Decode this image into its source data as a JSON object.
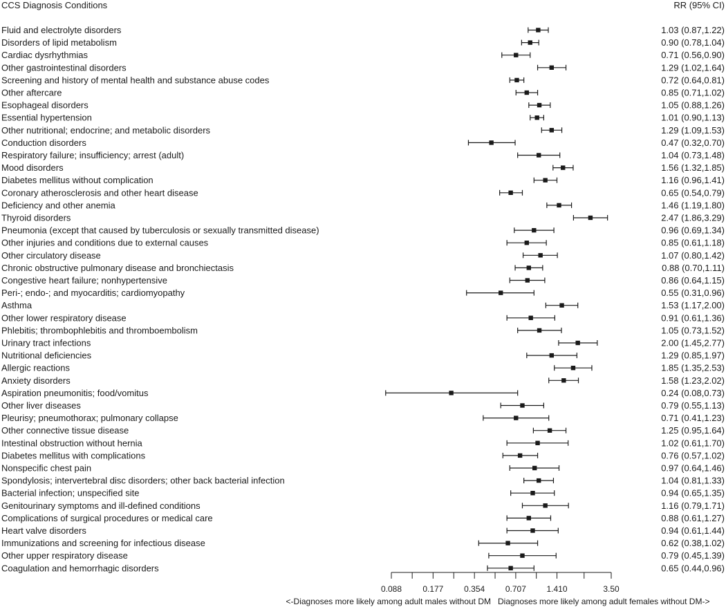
{
  "chart_data": {
    "type": "forest",
    "header_left": "CCS Diagnosis Conditions",
    "header_right": "RR (95% CI)",
    "x_scale": "log",
    "xlim": [
      0.088,
      3.5
    ],
    "x_ticks": [
      0.088,
      0.177,
      0.354,
      0.707,
      1.41,
      3.5
    ],
    "x_tick_labels": [
      "0.088",
      "0.177",
      "0.354",
      "0.707",
      "1.410",
      "3.50"
    ],
    "left_caption": "<-Diagnoses more likely among adult males without DM",
    "right_caption": "Diagnoses more likely among adult females without DM->",
    "colors": {
      "text": "#1a1a1a",
      "marks": "#1a1a1a"
    },
    "rows": [
      {
        "label": "Fluid and electrolyte disorders",
        "rr": 1.03,
        "lo": 0.87,
        "hi": 1.22,
        "text": "1.03 (0.87,1.22)"
      },
      {
        "label": "Disorders of lipid metabolism",
        "rr": 0.9,
        "lo": 0.78,
        "hi": 1.04,
        "text": "0.90 (0.78,1.04)"
      },
      {
        "label": "Cardiac dysrhythmias",
        "rr": 0.71,
        "lo": 0.56,
        "hi": 0.9,
        "text": "0.71 (0.56,0.90)"
      },
      {
        "label": "Other gastrointestinal disorders",
        "rr": 1.29,
        "lo": 1.02,
        "hi": 1.64,
        "text": "1.29 (1.02,1.64)"
      },
      {
        "label": "Screening and history of mental health and substance abuse codes",
        "rr": 0.72,
        "lo": 0.64,
        "hi": 0.81,
        "text": "0.72 (0.64,0.81)"
      },
      {
        "label": "Other aftercare",
        "rr": 0.85,
        "lo": 0.71,
        "hi": 1.02,
        "text": "0.85 (0.71,1.02)"
      },
      {
        "label": "Esophageal disorders",
        "rr": 1.05,
        "lo": 0.88,
        "hi": 1.26,
        "text": "1.05 (0.88,1.26)"
      },
      {
        "label": "Essential hypertension",
        "rr": 1.01,
        "lo": 0.9,
        "hi": 1.13,
        "text": "1.01 (0.90,1.13)"
      },
      {
        "label": "Other nutritional; endocrine; and metabolic disorders",
        "rr": 1.29,
        "lo": 1.09,
        "hi": 1.53,
        "text": "1.29 (1.09,1.53)"
      },
      {
        "label": "Conduction disorders",
        "rr": 0.47,
        "lo": 0.32,
        "hi": 0.7,
        "text": "0.47 (0.32,0.70)"
      },
      {
        "label": "Respiratory failure; insufficiency; arrest (adult)",
        "rr": 1.04,
        "lo": 0.73,
        "hi": 1.48,
        "text": "1.04 (0.73,1.48)"
      },
      {
        "label": "Mood disorders",
        "rr": 1.56,
        "lo": 1.32,
        "hi": 1.85,
        "text": "1.56 (1.32,1.85)"
      },
      {
        "label": "Diabetes mellitus without complication",
        "rr": 1.16,
        "lo": 0.96,
        "hi": 1.41,
        "text": "1.16 (0.96,1.41)"
      },
      {
        "label": "Coronary atherosclerosis and other heart disease",
        "rr": 0.65,
        "lo": 0.54,
        "hi": 0.79,
        "text": "0.65 (0.54,0.79)"
      },
      {
        "label": "Deficiency and other anemia",
        "rr": 1.46,
        "lo": 1.19,
        "hi": 1.8,
        "text": "1.46 (1.19,1.80)"
      },
      {
        "label": "Thyroid disorders",
        "rr": 2.47,
        "lo": 1.86,
        "hi": 3.29,
        "text": "2.47 (1.86,3.29)"
      },
      {
        "label": "Pneumonia (except that caused by tuberculosis or sexually transmitted disease)",
        "rr": 0.96,
        "lo": 0.69,
        "hi": 1.34,
        "text": "0.96 (0.69,1.34)"
      },
      {
        "label": "Other injuries and conditions due to external causes",
        "rr": 0.85,
        "lo": 0.61,
        "hi": 1.18,
        "text": "0.85 (0.61,1.18)"
      },
      {
        "label": "Other circulatory disease",
        "rr": 1.07,
        "lo": 0.8,
        "hi": 1.42,
        "text": "1.07 (0.80,1.42)"
      },
      {
        "label": "Chronic obstructive pulmonary disease and bronchiectasis",
        "rr": 0.88,
        "lo": 0.7,
        "hi": 1.11,
        "text": "0.88 (0.70,1.11)"
      },
      {
        "label": "Congestive heart failure; nonhypertensive",
        "rr": 0.86,
        "lo": 0.64,
        "hi": 1.15,
        "text": "0.86 (0.64,1.15)"
      },
      {
        "label": "Peri-; endo-; and myocarditis; cardiomyopathy",
        "rr": 0.55,
        "lo": 0.31,
        "hi": 0.96,
        "text": "0.55 (0.31,0.96)"
      },
      {
        "label": "Asthma",
        "rr": 1.53,
        "lo": 1.17,
        "hi": 2.0,
        "text": "1.53 (1.17,2.00)"
      },
      {
        "label": "Other lower respiratory disease",
        "rr": 0.91,
        "lo": 0.61,
        "hi": 1.36,
        "text": "0.91 (0.61,1.36)"
      },
      {
        "label": "Phlebitis; thrombophlebitis and thromboembolism",
        "rr": 1.05,
        "lo": 0.73,
        "hi": 1.52,
        "text": "1.05 (0.73,1.52)"
      },
      {
        "label": "Urinary tract infections",
        "rr": 2.0,
        "lo": 1.45,
        "hi": 2.77,
        "text": "2.00 (1.45,2.77)"
      },
      {
        "label": "Nutritional deficiencies",
        "rr": 1.29,
        "lo": 0.85,
        "hi": 1.97,
        "text": "1.29 (0.85,1.97)"
      },
      {
        "label": "Allergic reactions",
        "rr": 1.85,
        "lo": 1.35,
        "hi": 2.53,
        "text": "1.85 (1.35,2.53)"
      },
      {
        "label": "Anxiety disorders",
        "rr": 1.58,
        "lo": 1.23,
        "hi": 2.02,
        "text": "1.58 (1.23,2.02)"
      },
      {
        "label": "Aspiration pneumonitis; food/vomitus",
        "rr": 0.24,
        "lo": 0.08,
        "hi": 0.73,
        "text": "0.24 (0.08,0.73)"
      },
      {
        "label": "Other liver diseases",
        "rr": 0.79,
        "lo": 0.55,
        "hi": 1.13,
        "text": "0.79 (0.55,1.13)"
      },
      {
        "label": "Pleurisy; pneumothorax; pulmonary collapse",
        "rr": 0.71,
        "lo": 0.41,
        "hi": 1.23,
        "text": "0.71 (0.41,1.23)"
      },
      {
        "label": "Other connective tissue disease",
        "rr": 1.25,
        "lo": 0.95,
        "hi": 1.64,
        "text": "1.25 (0.95,1.64)"
      },
      {
        "label": "Intestinal obstruction without hernia",
        "rr": 1.02,
        "lo": 0.61,
        "hi": 1.7,
        "text": "1.02 (0.61,1.70)"
      },
      {
        "label": "Diabetes mellitus with complications",
        "rr": 0.76,
        "lo": 0.57,
        "hi": 1.02,
        "text": "0.76 (0.57,1.02)"
      },
      {
        "label": "Nonspecific chest pain",
        "rr": 0.97,
        "lo": 0.64,
        "hi": 1.46,
        "text": "0.97 (0.64,1.46)"
      },
      {
        "label": "Spondylosis; intervertebral disc disorders; other back bacterial infection",
        "rr": 1.04,
        "lo": 0.81,
        "hi": 1.33,
        "text": "1.04 (0.81,1.33)"
      },
      {
        "label": "Bacterial infection; unspecified site",
        "rr": 0.94,
        "lo": 0.65,
        "hi": 1.35,
        "text": "0.94 (0.65,1.35)"
      },
      {
        "label": "Genitourinary symptoms and ill-defined conditions",
        "rr": 1.16,
        "lo": 0.79,
        "hi": 1.71,
        "text": "1.16 (0.79,1.71)"
      },
      {
        "label": "Complications of surgical procedures or medical care",
        "rr": 0.88,
        "lo": 0.61,
        "hi": 1.27,
        "text": "0.88 (0.61,1.27)"
      },
      {
        "label": "Heart valve disorders",
        "rr": 0.94,
        "lo": 0.61,
        "hi": 1.44,
        "text": "0.94 (0.61,1.44)"
      },
      {
        "label": "Immunizations and screening for infectious disease",
        "rr": 0.62,
        "lo": 0.38,
        "hi": 1.02,
        "text": "0.62 (0.38,1.02)"
      },
      {
        "label": "Other upper respiratory disease",
        "rr": 0.79,
        "lo": 0.45,
        "hi": 1.39,
        "text": "0.79 (0.45,1.39)"
      },
      {
        "label": "Coagulation and hemorrhagic disorders",
        "rr": 0.65,
        "lo": 0.44,
        "hi": 0.96,
        "text": "0.65 (0.44,0.96)"
      }
    ]
  }
}
